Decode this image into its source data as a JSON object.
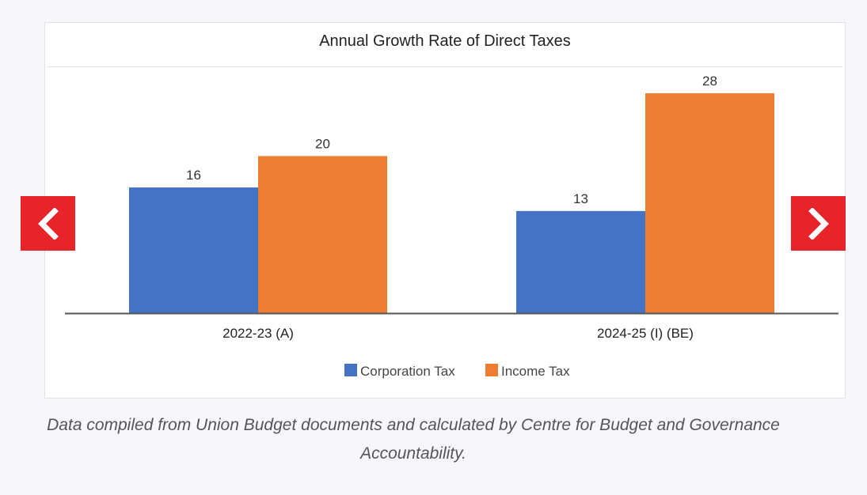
{
  "slider": {
    "prev_icon": "chevron-left-icon",
    "next_icon": "chevron-right-icon",
    "button_color": "#e8242b"
  },
  "caption": "Data compiled from Union Budget documents and calculated by Centre for Budget and Governance Accountability.",
  "chart_data": {
    "type": "bar",
    "title": "Annual Growth Rate of Direct Taxes",
    "xlabel": "",
    "ylabel": "",
    "categories": [
      "2022-23 (A)",
      "2024-25 (I) (BE)"
    ],
    "series": [
      {
        "name": "Corporation Tax",
        "values": [
          16,
          13
        ],
        "color": "#4472c4"
      },
      {
        "name": "Income Tax",
        "values": [
          20,
          28
        ],
        "color": "#ed7d31"
      }
    ],
    "ylim": [
      0,
      30
    ],
    "grid": false,
    "legend": "bottom",
    "data_labels": true
  }
}
